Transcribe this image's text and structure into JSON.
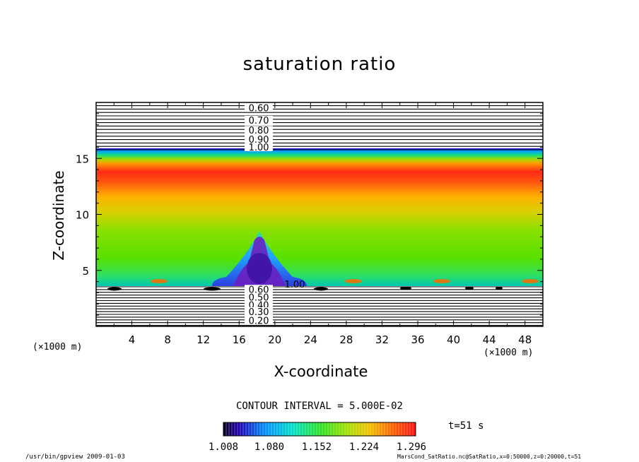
{
  "chart_data": {
    "type": "heatmap",
    "title": "saturation ratio",
    "xlabel": "X-coordinate",
    "ylabel": "Z-coordinate",
    "x_unit": "(×1000 m)",
    "xlim": [
      0,
      50
    ],
    "ylim": [
      0,
      20
    ],
    "x_ticks": [
      4,
      8,
      12,
      16,
      20,
      24,
      28,
      32,
      36,
      40,
      44,
      48
    ],
    "y_ticks": [
      5,
      10,
      15
    ],
    "contour_interval": "CONTOUR INTERVAL = 5.000E-02",
    "colorbar": {
      "ticks": [
        "1.008",
        "1.080",
        "1.152",
        "1.224",
        "1.296"
      ],
      "min": 1.008,
      "max": 1.33
    },
    "contour_labels_upper": [
      {
        "text": "0.60",
        "z": 19.4
      },
      {
        "text": "0.70",
        "z": 18.3
      },
      {
        "text": "0.80",
        "z": 17.4
      },
      {
        "text": "0.90",
        "z": 16.6
      },
      {
        "text": "1.00",
        "z": 15.9
      }
    ],
    "contour_labels_lower": [
      {
        "text": "0.60",
        "z": 3.2
      },
      {
        "text": "0.50",
        "z": 2.5
      },
      {
        "text": "0.40",
        "z": 1.8
      },
      {
        "text": "0.30",
        "z": 1.2
      },
      {
        "text": "0.20",
        "z": 0.4
      }
    ],
    "contour_label_mid": {
      "text": "1.00",
      "x": 19.5,
      "z": 3.6
    },
    "legend_placement": "bottom"
  },
  "annotations": {
    "time": "t=51 s",
    "footer_left": "/usr/bin/gpview   2009-01-03",
    "footer_right": "MarsCond_SatRatio.nc@SatRatio,x=0:50000,z=0:20000,t=51"
  },
  "colors": {
    "low": "#00009b",
    "high": "#ff2a2a",
    "contour": "#000000"
  }
}
